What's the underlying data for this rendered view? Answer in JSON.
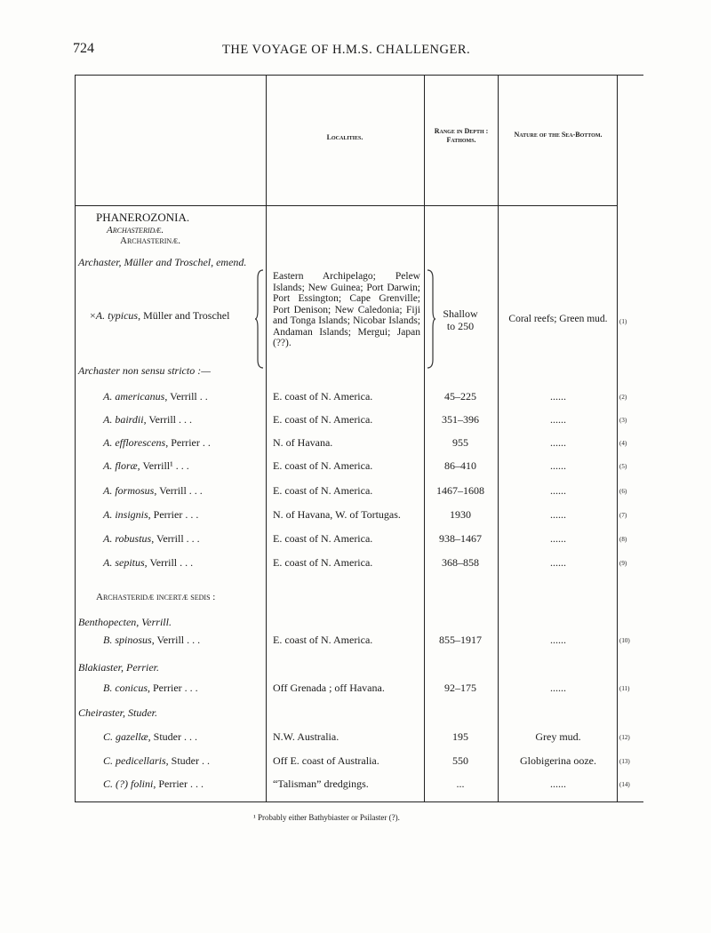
{
  "page_number": "724",
  "running_head": "THE VOYAGE OF H.M.S. CHALLENGER.",
  "headers": {
    "localities": "Localities.",
    "depth": "Range in Depth : Fathoms.",
    "bottom": "Nature of the Sea-Bottom."
  },
  "groups": {
    "order": "PHANEROZONIA.",
    "family": "Archasteridæ.",
    "subfamily": "Archasterinæ.",
    "genus1": "Archaster, Müller and Troschel, emend.",
    "genus1b": "Archaster non sensu stricto :—",
    "incertae": "Archasteridæ incertæ sedis :",
    "genus2": "Benthopecten, Verrill.",
    "genus3": "Blakiaster, Perrier.",
    "genus4": "Cheiraster, Studer."
  },
  "typicus": {
    "species": "×A. typicus, Müller and Troschel",
    "localities": "Eastern Archipelago; Pelew Islands; New Guinea; Port Darwin; Port Essington; Cape Grenville; Port Denison; New Caledonia; Fiji and Tonga Islands; Nicobar Islands; Andaman Islands; Mergui; Japan (??).",
    "depth": "Shallow to 250",
    "bottom": "Coral reefs; Green mud.",
    "note": "(1)"
  },
  "rows": [
    {
      "species": "A. americanus, Verrill  .  .",
      "locality": "E. coast of N. America.",
      "depth": "45–225",
      "bottom": "......",
      "note": "(2)"
    },
    {
      "species": "A. bairdii, Verrill  .  .  .",
      "locality": "E. coast of N. America.",
      "depth": "351–396",
      "bottom": "......",
      "note": "(3)"
    },
    {
      "species": "A. efflorescens, Perrier  .  .",
      "locality": "N. of Havana.",
      "depth": "955",
      "bottom": "......",
      "note": "(4)"
    },
    {
      "species": "A. floræ, Verrill¹  .  .  .",
      "locality": "E. coast of N. America.",
      "depth": "86–410",
      "bottom": "......",
      "note": "(5)"
    },
    {
      "species": "A. formosus, Verrill .  .  .",
      "locality": "E. coast of N. America.",
      "depth": "1467–1608",
      "bottom": "......",
      "note": "(6)"
    },
    {
      "species": "A. insignis, Perrier  .  .  .",
      "locality": "N. of Havana, W. of Tortugas.",
      "depth": "1930",
      "bottom": "......",
      "note": "(7)"
    },
    {
      "species": "A. robustus, Verrill  .  .  .",
      "locality": "E. coast of N. America.",
      "depth": "938–1467",
      "bottom": "......",
      "note": "(8)"
    },
    {
      "species": "A. sepitus, Verrill  .  .  .",
      "locality": "E. coast of N. America.",
      "depth": "368–858",
      "bottom": "......",
      "note": "(9)"
    },
    {
      "species": "B. spinosus, Verrill .  .  .",
      "locality": "E. coast of N. America.",
      "depth": "855–1917",
      "bottom": "......",
      "note": "(10)"
    },
    {
      "species": "B. conicus, Perrier .  .  .",
      "locality": "Off Grenada ; off Havana.",
      "depth": "92–175",
      "bottom": "......",
      "note": "(11)"
    },
    {
      "species": "C. gazellæ, Studer  .  .  .",
      "locality": "N.W. Australia.",
      "depth": "195",
      "bottom": "Grey mud.",
      "note": "(12)"
    },
    {
      "species": "C. pedicellaris, Studer  .  .",
      "locality": "Off E. coast of Australia.",
      "depth": "550",
      "bottom": "Globigerina ooze.",
      "note": "(13)"
    },
    {
      "species": "C. (?) folini, Perrier .  .  .",
      "locality": "“Talisman” dredgings.",
      "depth": "...",
      "bottom": "......",
      "note": "(14)"
    }
  ],
  "footnote": "¹ Probably either Bathybiaster or Psilaster (?)."
}
